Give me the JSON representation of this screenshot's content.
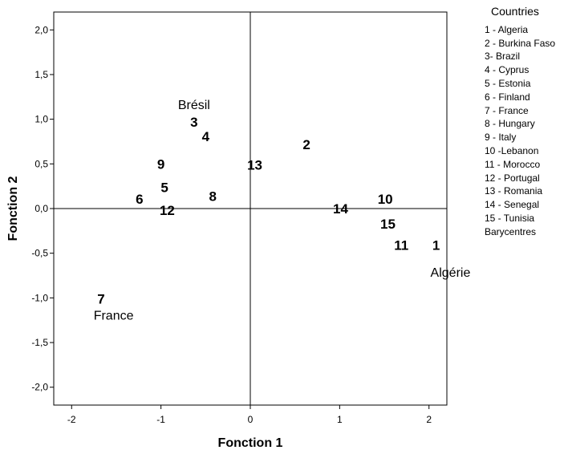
{
  "chart_data": {
    "type": "scatter",
    "xlabel": "Fonction 1",
    "ylabel": "Fonction 2",
    "xlim": [
      -2.2,
      2.2
    ],
    "ylim": [
      -2.2,
      2.2
    ],
    "x_ticks": [
      -2,
      -1,
      0,
      1,
      2
    ],
    "x_tick_labels": [
      "-2",
      "-1",
      "0",
      "1",
      "2"
    ],
    "y_ticks": [
      2.0,
      1.5,
      1.0,
      0.5,
      0.0,
      -0.5,
      -1.0,
      -1.5,
      -2.0
    ],
    "y_tick_labels": [
      "2,0",
      "1,5",
      "1,0",
      "0,5",
      "0,0",
      "-0,5",
      "-1,0",
      "-1,5",
      "-2,0"
    ],
    "reference_lines": {
      "x": 0,
      "y": 0
    },
    "grid": false,
    "legend_position": "right",
    "points": [
      {
        "label": "1",
        "x": 2.08,
        "y": -0.41
      },
      {
        "label": "2",
        "x": 0.63,
        "y": 0.72
      },
      {
        "label": "3",
        "x": -0.63,
        "y": 0.97
      },
      {
        "label": "4",
        "x": -0.5,
        "y": 0.81
      },
      {
        "label": "5",
        "x": -0.96,
        "y": 0.24
      },
      {
        "label": "6",
        "x": -1.24,
        "y": 0.11
      },
      {
        "label": "7",
        "x": -1.67,
        "y": -1.01
      },
      {
        "label": "8",
        "x": -0.42,
        "y": 0.14
      },
      {
        "label": "9",
        "x": -1.0,
        "y": 0.5
      },
      {
        "label": "10",
        "x": 1.51,
        "y": 0.11
      },
      {
        "label": "11",
        "x": 1.69,
        "y": -0.41
      },
      {
        "label": "12",
        "x": -0.93,
        "y": -0.02
      },
      {
        "label": "13",
        "x": 0.05,
        "y": 0.49
      },
      {
        "label": "14",
        "x": 1.01,
        "y": -0.0
      },
      {
        "label": "15",
        "x": 1.54,
        "y": -0.17
      }
    ],
    "centroids": [
      {
        "label": "Brésil",
        "x": -0.63,
        "y": 1.16
      },
      {
        "label": "France",
        "x": -1.53,
        "y": -1.2
      },
      {
        "label": "Algérie",
        "x": 2.24,
        "y": -0.72
      }
    ],
    "legend": {
      "title": "Countries",
      "entries": [
        "1 - Algeria",
        "2 - Burkina Faso",
        "3- Brazil",
        "4 - Cyprus",
        "5 - Estonia",
        "6 - Finland",
        "7 - France",
        "8 - Hungary",
        "9 -  Italy",
        "10 -Lebanon",
        "11 - Morocco",
        "12 - Portugal",
        "13 - Romania",
        "14 - Senegal",
        "15 - Tunisia",
        "Barycentres"
      ]
    }
  }
}
